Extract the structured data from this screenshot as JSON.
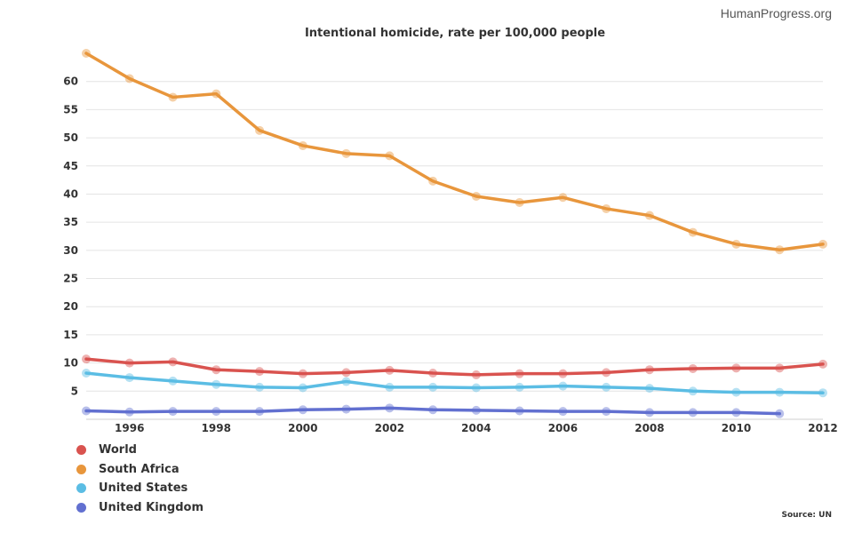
{
  "brand": "HumanProgress.org",
  "source": "Source: UN",
  "chart_data": {
    "type": "line",
    "title": "Intentional homicide, rate per 100,000 people",
    "xlabel": "",
    "ylabel": "",
    "x": [
      1995,
      1996,
      1997,
      1998,
      1999,
      2000,
      2001,
      2002,
      2003,
      2004,
      2005,
      2006,
      2007,
      2008,
      2009,
      2010,
      2011,
      2012
    ],
    "xticks": [
      "1996",
      "1998",
      "2000",
      "2002",
      "2004",
      "2006",
      "2008",
      "2010",
      "2012"
    ],
    "yticks": [
      "5",
      "10",
      "15",
      "20",
      "25",
      "30",
      "35",
      "40",
      "45",
      "50",
      "55",
      "60"
    ],
    "ylim": [
      0,
      65
    ],
    "grid": true,
    "legend_position": "bottom-left",
    "series": [
      {
        "name": "World",
        "color": "#d9534f",
        "values": [
          10.7,
          10.0,
          10.2,
          8.8,
          8.5,
          8.1,
          8.3,
          8.7,
          8.2,
          7.9,
          8.1,
          8.1,
          8.3,
          8.8,
          9.0,
          9.1,
          9.1,
          9.8
        ]
      },
      {
        "name": "South Africa",
        "color": "#e8963c",
        "values": [
          65.0,
          60.5,
          57.2,
          57.8,
          51.3,
          48.6,
          47.2,
          46.8,
          42.3,
          39.6,
          38.5,
          39.4,
          37.4,
          36.2,
          33.2,
          31.1,
          30.1,
          31.1
        ]
      },
      {
        "name": "United States",
        "color": "#5bbde4",
        "values": [
          8.2,
          7.4,
          6.8,
          6.2,
          5.7,
          5.6,
          6.7,
          5.7,
          5.7,
          5.6,
          5.7,
          5.9,
          5.7,
          5.5,
          5.0,
          4.8,
          4.8,
          4.7
        ]
      },
      {
        "name": "United Kingdom",
        "color": "#6270d0",
        "values": [
          1.5,
          1.3,
          1.4,
          1.4,
          1.4,
          1.7,
          1.8,
          2.0,
          1.7,
          1.6,
          1.5,
          1.4,
          1.4,
          1.2,
          1.2,
          1.2,
          1.0,
          null
        ]
      }
    ]
  }
}
